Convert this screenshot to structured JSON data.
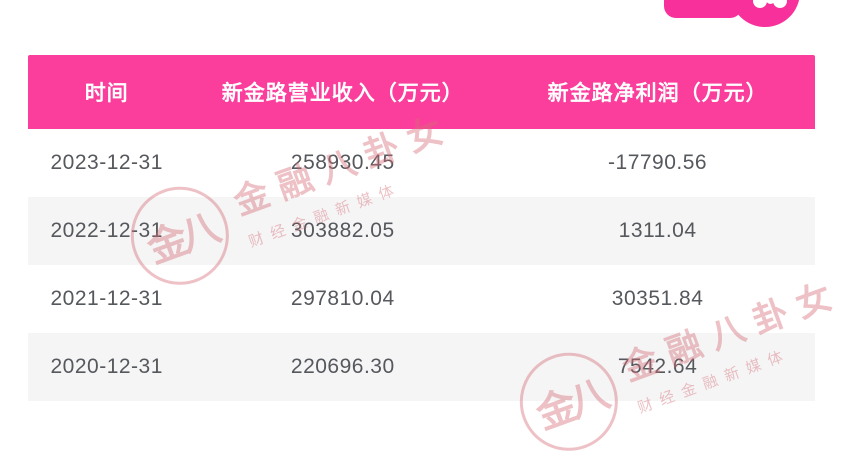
{
  "colors": {
    "header-bg": "#FB3E9C",
    "brand-pink": "#F8309B",
    "stripe": "#F5F5F6",
    "cell-text": "#55585C",
    "watermark": "#D66E78"
  },
  "chart_data": {
    "type": "table",
    "columns": [
      "时间",
      "新金路营业收入（万元）",
      "新金路净利润（万元）"
    ],
    "rows": [
      [
        "2023-12-31",
        "258930.45",
        "-17790.56"
      ],
      [
        "2022-12-31",
        "303882.05",
        "1311.04"
      ],
      [
        "2021-12-31",
        "297810.04",
        "30351.84"
      ],
      [
        "2020-12-31",
        "220696.30",
        "7542.64"
      ]
    ],
    "layout_hints": {
      "header_text_color": "#FFFFFF",
      "zebra_striping": true,
      "column_alignment": "center"
    }
  },
  "watermark": {
    "seal_text": "金八",
    "brand_text": "金融八卦女",
    "tagline_text": "财经金融新媒体"
  },
  "brand_logo": {
    "icon": "pink-flower-badge-icon",
    "note_color": "#F8309B"
  }
}
